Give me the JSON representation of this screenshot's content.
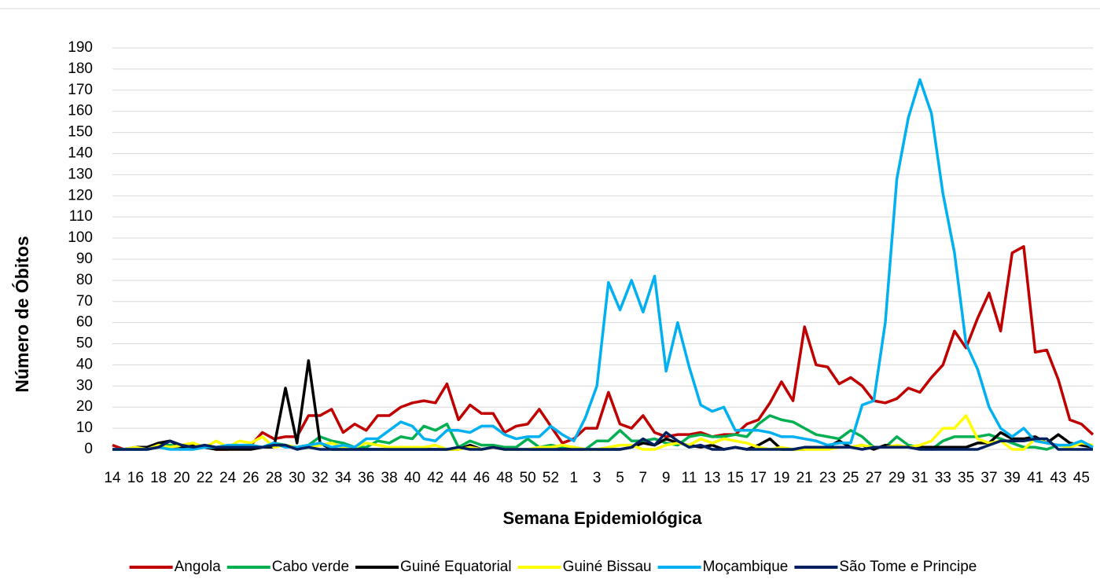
{
  "chart_data": {
    "type": "line",
    "x_label": "Semana Epidemiológica",
    "y_label": "Número de Óbitos",
    "categories": [
      "14",
      null,
      "16",
      null,
      "18",
      null,
      "20",
      null,
      "22",
      null,
      "24",
      null,
      "26",
      null,
      "28",
      null,
      "30",
      null,
      "32",
      null,
      "34",
      null,
      "36",
      null,
      "38",
      null,
      "40",
      null,
      "42",
      null,
      "44",
      null,
      "46",
      null,
      "48",
      null,
      "50",
      null,
      "52",
      null,
      "1",
      null,
      "3",
      null,
      "5",
      null,
      "7",
      null,
      "9",
      null,
      "11",
      null,
      "13",
      null,
      "15",
      null,
      "17",
      null,
      "19",
      null,
      "21",
      null,
      "23",
      null,
      "25",
      null,
      "27",
      null,
      "29",
      null,
      "31",
      null,
      "33",
      null,
      "35",
      null,
      "37",
      null,
      "39",
      null,
      "41",
      null,
      "43",
      null,
      "45",
      null
    ],
    "ylim": [
      0,
      190
    ],
    "yticks": [
      0,
      10,
      20,
      30,
      40,
      50,
      60,
      70,
      80,
      90,
      100,
      110,
      120,
      130,
      140,
      150,
      160,
      170,
      180,
      190
    ],
    "grid": true,
    "legend": "bottom",
    "series": [
      {
        "name": "Angola",
        "color": "#c00000",
        "values": [
          2,
          0,
          0,
          0,
          1,
          1,
          1,
          2,
          1,
          0,
          0,
          1,
          2,
          8,
          5,
          6,
          6,
          16,
          16,
          19,
          8,
          12,
          9,
          16,
          16,
          20,
          22,
          23,
          22,
          31,
          14,
          21,
          17,
          17,
          8,
          11,
          12,
          19,
          11,
          3,
          5,
          10,
          10,
          27,
          12,
          10,
          16,
          8,
          6,
          7,
          7,
          8,
          6,
          7,
          7,
          12,
          14,
          22,
          32,
          23,
          58,
          40,
          39,
          31,
          34,
          30,
          23,
          22,
          24,
          29,
          27,
          34,
          40,
          56,
          48,
          62,
          74,
          56,
          93,
          96,
          46,
          47,
          33,
          14,
          12,
          7
        ]
      },
      {
        "name": "Cabo verde",
        "color": "#00b050",
        "values": [
          0,
          0,
          0,
          1,
          2,
          2,
          1,
          1,
          1,
          0,
          1,
          1,
          2,
          1,
          3,
          2,
          1,
          2,
          6,
          4,
          3,
          1,
          1,
          4,
          3,
          6,
          5,
          11,
          9,
          12,
          1,
          4,
          2,
          2,
          1,
          1,
          5,
          1,
          2,
          1,
          1,
          0,
          4,
          4,
          9,
          4,
          4,
          5,
          3,
          2,
          6,
          7,
          6,
          6,
          7,
          6,
          12,
          16,
          14,
          13,
          10,
          7,
          6,
          5,
          9,
          6,
          1,
          1,
          6,
          2,
          1,
          0,
          4,
          6,
          6,
          6,
          7,
          5,
          3,
          1,
          1,
          0,
          2,
          1,
          3,
          1
        ]
      },
      {
        "name": "Guiné Equatorial",
        "color": "#000000",
        "values": [
          0,
          0,
          1,
          1,
          3,
          4,
          1,
          2,
          1,
          0,
          0,
          0,
          0,
          1,
          1,
          29,
          3,
          42,
          3,
          0,
          0,
          0,
          0,
          0,
          0,
          0,
          0,
          0,
          0,
          0,
          0,
          2,
          0,
          1,
          0,
          0,
          0,
          0,
          0,
          0,
          0,
          0,
          0,
          0,
          0,
          1,
          3,
          2,
          5,
          3,
          2,
          1,
          2,
          0,
          1,
          0,
          2,
          5,
          0,
          0,
          0,
          1,
          1,
          4,
          1,
          2,
          0,
          2,
          1,
          1,
          1,
          1,
          1,
          1,
          1,
          3,
          3,
          8,
          5,
          5,
          6,
          3,
          7,
          3,
          2,
          1
        ]
      },
      {
        "name": "Guiné Bissau",
        "color": "#ffff00",
        "values": [
          0,
          0,
          1,
          0,
          2,
          1,
          2,
          3,
          1,
          4,
          1,
          4,
          3,
          6,
          1,
          2,
          1,
          1,
          2,
          3,
          1,
          1,
          3,
          2,
          1,
          1,
          1,
          1,
          2,
          0,
          0,
          1,
          0,
          1,
          0,
          0,
          0,
          1,
          1,
          2,
          1,
          0,
          0,
          1,
          2,
          2,
          0,
          0,
          2,
          3,
          2,
          5,
          3,
          5,
          4,
          3,
          1,
          0,
          1,
          0,
          0,
          0,
          0,
          1,
          1,
          2,
          1,
          1,
          2,
          1,
          2,
          4,
          10,
          10,
          16,
          5,
          3,
          4,
          0,
          0,
          5,
          3,
          2,
          1,
          3,
          2
        ]
      },
      {
        "name": "Moçambique",
        "color": "#00b0f0",
        "values": [
          0,
          0,
          0,
          0,
          1,
          0,
          0,
          0,
          1,
          1,
          2,
          2,
          2,
          1,
          3,
          1,
          1,
          2,
          3,
          1,
          2,
          1,
          5,
          5,
          9,
          13,
          11,
          5,
          4,
          9,
          9,
          8,
          11,
          11,
          7,
          5,
          6,
          6,
          11,
          7,
          4,
          15,
          30,
          79,
          66,
          80,
          65,
          82,
          37,
          60,
          39,
          21,
          18,
          20,
          9,
          9,
          9,
          8,
          6,
          6,
          5,
          4,
          2,
          3,
          3,
          21,
          23,
          60,
          128,
          157,
          175,
          159,
          121,
          93,
          50,
          38,
          20,
          10,
          6,
          10,
          4,
          3,
          2,
          2,
          4,
          1
        ]
      },
      {
        "name": "São Tome e Principe",
        "color": "#002060",
        "values": [
          0,
          0,
          0,
          0,
          1,
          4,
          2,
          1,
          2,
          1,
          1,
          1,
          1,
          1,
          2,
          2,
          0,
          1,
          0,
          0,
          0,
          0,
          0,
          0,
          0,
          0,
          0,
          0,
          0,
          0,
          1,
          0,
          0,
          1,
          0,
          0,
          0,
          0,
          0,
          0,
          0,
          0,
          0,
          0,
          0,
          1,
          5,
          2,
          8,
          4,
          1,
          2,
          0,
          0,
          1,
          0,
          0,
          0,
          0,
          0,
          1,
          1,
          1,
          1,
          1,
          0,
          1,
          1,
          1,
          1,
          0,
          0,
          0,
          0,
          0,
          0,
          2,
          4,
          4,
          4,
          5,
          5,
          0,
          0,
          0,
          0
        ]
      }
    ]
  }
}
